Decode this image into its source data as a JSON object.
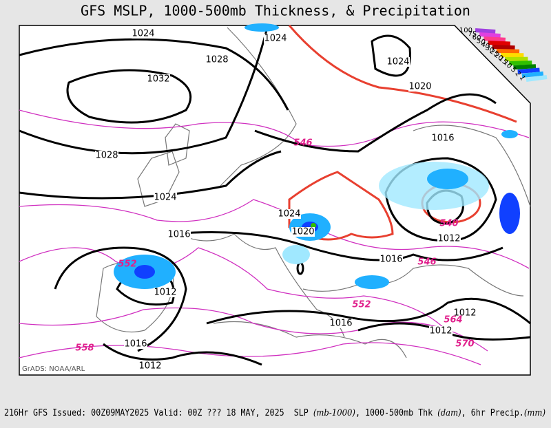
{
  "title": "GFS MSLP, 1000-500mb Thickness, & Precipitation",
  "credit": "GrADS: NOAA/ARL",
  "footer": {
    "run": "216Hr GFS Issued: 00Z09MAY2025 Valid: 00Z ??? 18 MAY, 2025",
    "slp": "SLP",
    "slp_unit": "(mb-1000)",
    "thk": ", 1000-500mb Thk",
    "thk_unit": "(dam)",
    "precip": ", 6hr Precip.",
    "precip_unit": "(mm)"
  },
  "pressure_labels": [
    "1024",
    "1024",
    "1028",
    "1032",
    "1024",
    "1020",
    "1016",
    "1028",
    "1024",
    "1024",
    "1020",
    "1016",
    "1012",
    "1016",
    "1012",
    "1016",
    "1012",
    "1012",
    "1016",
    "1012"
  ],
  "thickness_labels": [
    "546",
    "540",
    "546",
    "552",
    "552",
    "564",
    "570",
    "558"
  ],
  "legend": {
    "labels": [
      "100",
      "75",
      "60",
      "50",
      "40",
      "30",
      "25",
      "20",
      "15",
      "10",
      "5",
      "2",
      "1"
    ],
    "colors": [
      "#a040e0",
      "#e040e0",
      "#ff3c8c",
      "#e00000",
      "#b00000",
      "#ff6a00",
      "#ffdc00",
      "#b0e000",
      "#30c000",
      "#008000",
      "#1040ff",
      "#20b0ff",
      "#a0e8ff"
    ]
  }
}
